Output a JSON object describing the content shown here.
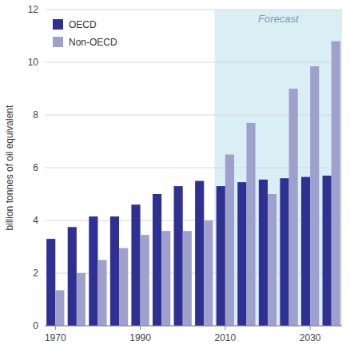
{
  "chart_data": {
    "type": "bar",
    "categories": [
      "1970",
      null,
      null,
      null,
      "1990",
      null,
      null,
      null,
      "2010",
      null,
      null,
      null,
      "2030",
      null
    ],
    "series": [
      {
        "name": "OECD",
        "color": "#2e3192",
        "values": [
          3.3,
          3.75,
          4.15,
          4.15,
          4.6,
          5.0,
          5.3,
          5.5,
          5.3,
          5.45,
          5.55,
          5.6,
          5.65,
          5.7
        ]
      },
      {
        "name": "Non-OECD",
        "color": "#a0a0cc",
        "values": [
          1.35,
          2.0,
          2.5,
          2.95,
          3.45,
          3.6,
          3.6,
          4.0,
          6.5,
          7.7,
          5.0,
          9.0,
          9.85,
          10.8
        ]
      }
    ],
    "y_label": "billion tonnes of oil equivalent",
    "ylim": [
      0,
      12
    ],
    "yticks": [
      0,
      2,
      4,
      6,
      8,
      10,
      12
    ],
    "grid": true,
    "legend": "upper left",
    "annotations": [
      {
        "text": "Forecast",
        "x": "2010"
      }
    ]
  }
}
